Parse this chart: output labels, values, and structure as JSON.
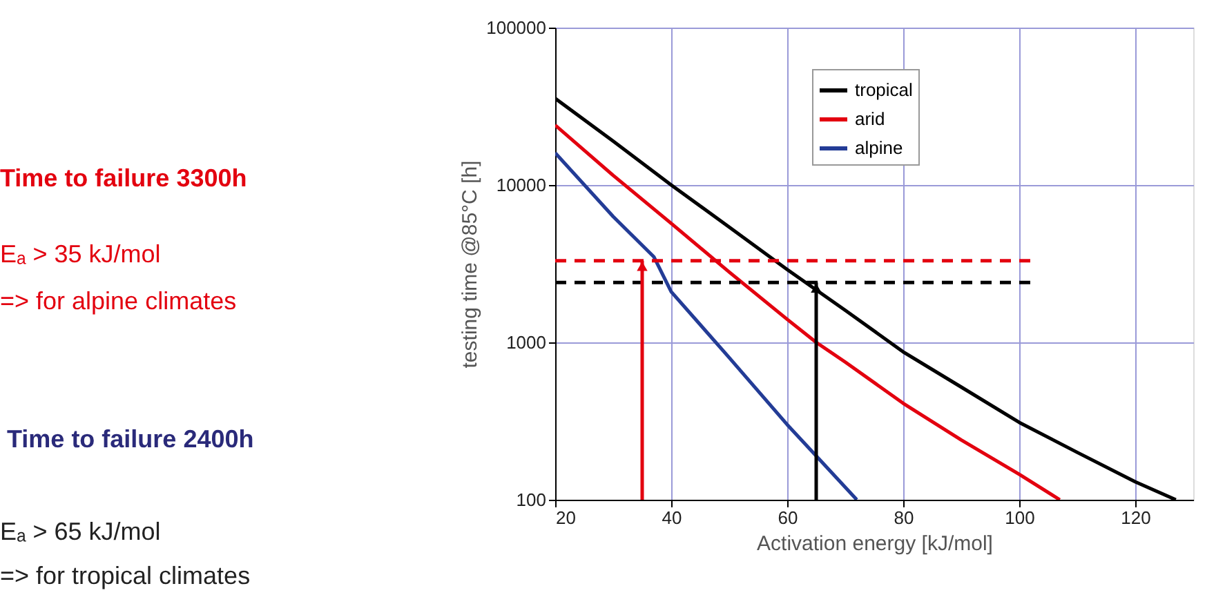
{
  "chart_data": {
    "type": "line",
    "xlabel": "Activation energy [kJ/mol]",
    "ylabel": "testing time @85°C [h]",
    "xlim": [
      20,
      130
    ],
    "xticks": [
      20,
      40,
      60,
      80,
      100,
      120
    ],
    "ylim": [
      100,
      100000
    ],
    "yticks": [
      100,
      1000,
      10000,
      100000
    ],
    "log": "y",
    "grid": true,
    "legend": "top",
    "series": [
      {
        "name": "tropical",
        "color": "#000000",
        "x": [
          20,
          30,
          40,
          50,
          60,
          70,
          80,
          90,
          100,
          110,
          120,
          127
        ],
        "values": [
          35500,
          19000,
          10000,
          5400,
          2900,
          1600,
          870,
          520,
          310,
          200,
          130,
          100
        ]
      },
      {
        "name": "arid",
        "color": "#e3000f",
        "x": [
          20,
          30,
          40,
          50,
          60,
          65,
          70,
          80,
          90,
          100,
          107
        ],
        "values": [
          24000,
          11500,
          5700,
          2800,
          1400,
          1000,
          750,
          410,
          240,
          145,
          100
        ]
      },
      {
        "name": "alpine",
        "color": "#233c96",
        "x": [
          20,
          30,
          37,
          40,
          50,
          60,
          65,
          72
        ],
        "values": [
          16000,
          6300,
          3500,
          2100,
          800,
          300,
          190,
          100
        ]
      },
      {
        "type": "line",
        "line_style": "dashed",
        "color": "#e3000f",
        "x": [
          20,
          102
        ],
        "values": [
          3300,
          3300
        ]
      },
      {
        "type": "line",
        "line_style": "dashed",
        "color": "#000000",
        "x": [
          20,
          102
        ],
        "values": [
          2400,
          2400
        ]
      }
    ],
    "ref_lines": [
      {
        "axis": "x",
        "value": 35,
        "color": "#e3000f"
      },
      {
        "axis": "x",
        "value": 65,
        "color": "#000000"
      }
    ],
    "annotations": [
      "Time to failure 3300h",
      "Eₐ > 35 kJ/mol",
      "=> for alpine climates",
      "Time to failure 2400h",
      "Eₐ > 65 kJ/mol",
      "=> for tropical climates"
    ]
  }
}
